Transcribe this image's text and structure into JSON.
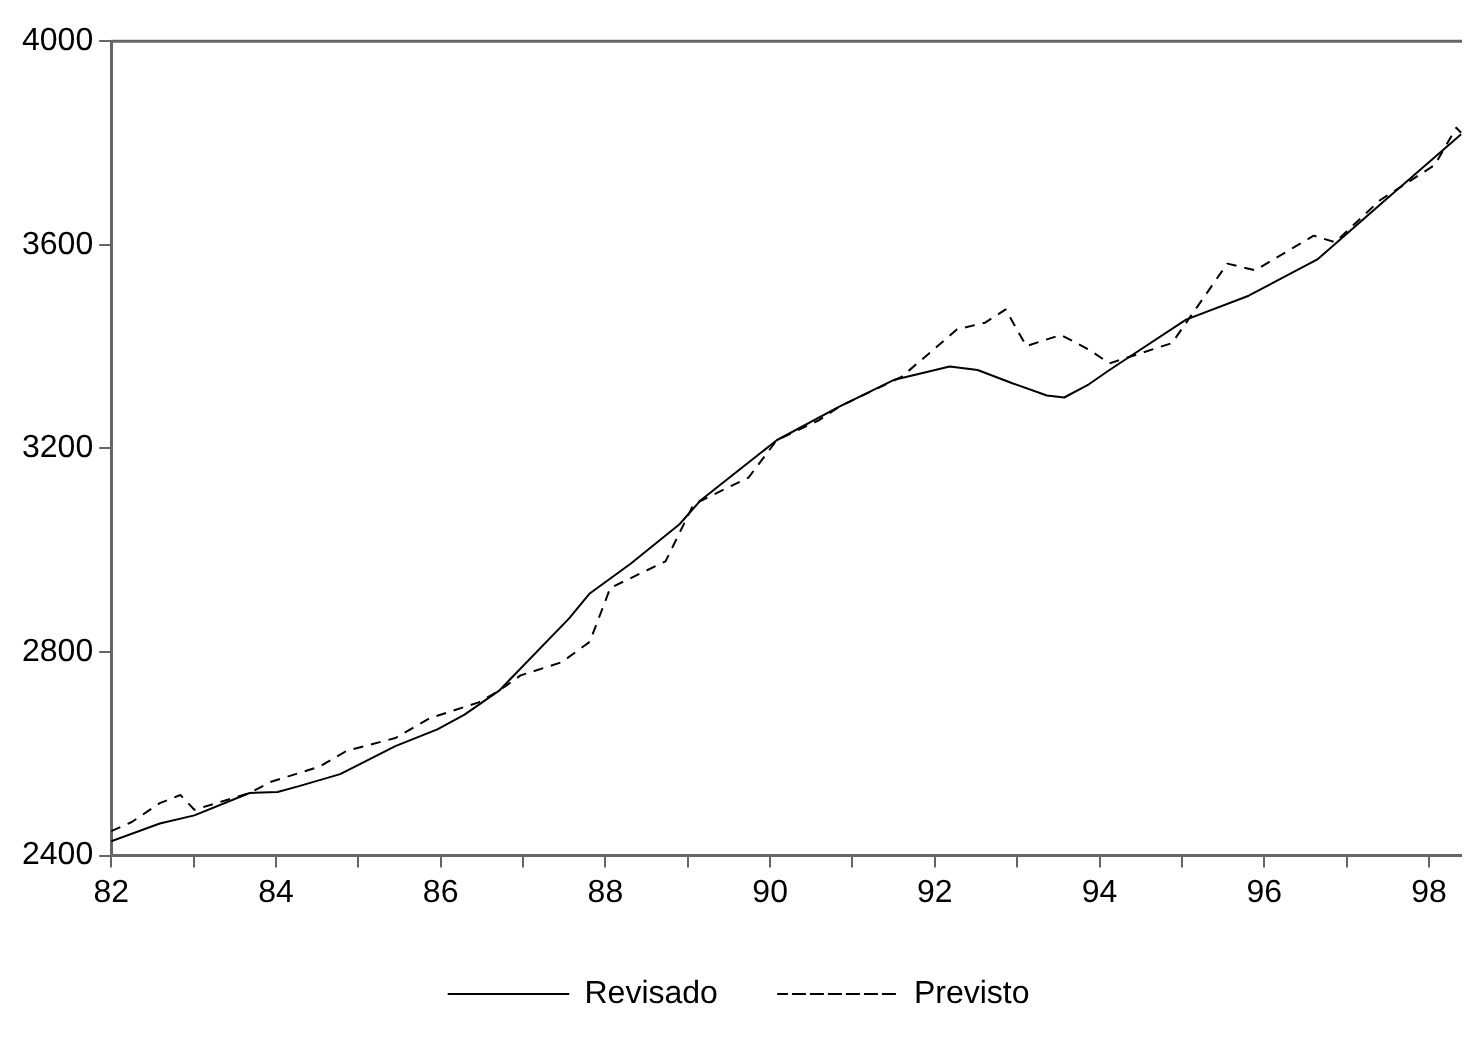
{
  "chart_data": {
    "type": "line",
    "xlim": [
      82,
      98.4
    ],
    "xticks": [
      82,
      {
        "value": 83,
        "label": null
      },
      84,
      {
        "value": 85,
        "label": null
      },
      86,
      {
        "value": 87,
        "label": null
      },
      88,
      {
        "value": 89,
        "label": null
      },
      90,
      {
        "value": 91,
        "label": null
      },
      92,
      {
        "value": 93,
        "label": null
      },
      94,
      {
        "value": 95,
        "label": null
      },
      96,
      {
        "value": 97,
        "label": null
      },
      98
    ],
    "ylim": [
      2400,
      4000
    ],
    "yticks": [
      2400,
      2800,
      3200,
      3600,
      4000
    ],
    "grid": false,
    "legend": "bottom",
    "marker": "none",
    "series": [
      {
        "name": "Revisado",
        "color": "#000000",
        "line_style": "solid",
        "x": [
          82.0,
          82.59,
          83.01,
          83.68,
          84.02,
          84.27,
          84.78,
          85.45,
          85.96,
          86.29,
          86.71,
          87.56,
          87.81,
          88.31,
          88.9,
          89.15,
          90.08,
          90.84,
          91.51,
          92.18,
          92.52,
          92.94,
          93.36,
          93.57,
          93.87,
          94.12,
          95.05,
          95.81,
          96.65,
          97.4,
          98.39
        ],
        "values": [
          2428,
          2463,
          2479,
          2523,
          2525,
          2536,
          2560,
          2615,
          2648,
          2677,
          2724,
          2866,
          2915,
          2974,
          3051,
          3097,
          3216,
          3282,
          3335,
          3361,
          3354,
          3328,
          3304,
          3300,
          3326,
          3354,
          3453,
          3500,
          3572,
          3678,
          3817
        ]
      },
      {
        "name": "Previsto",
        "color": "#000000",
        "line_style": "dashed",
        "x": [
          82.0,
          82.25,
          82.59,
          82.84,
          83.01,
          83.68,
          83.94,
          84.53,
          84.86,
          85.45,
          85.87,
          86.46,
          86.71,
          86.97,
          87.47,
          87.81,
          88.06,
          88.73,
          89.07,
          89.74,
          90.08,
          90.59,
          90.84,
          91.6,
          92.27,
          92.61,
          92.86,
          93.11,
          93.53,
          93.87,
          94.12,
          94.88,
          95.55,
          95.89,
          96.6,
          96.86,
          97.4,
          98.07,
          98.33,
          98.39
        ],
        "values": [
          2448,
          2466,
          2503,
          2519,
          2490,
          2523,
          2545,
          2575,
          2606,
          2631,
          2670,
          2701,
          2724,
          2754,
          2780,
          2820,
          2926,
          2978,
          3090,
          3143,
          3216,
          3255,
          3282,
          3341,
          3434,
          3447,
          3473,
          3401,
          3423,
          3394,
          3367,
          3407,
          3563,
          3550,
          3618,
          3605,
          3687,
          3757,
          3830,
          3820
        ]
      }
    ]
  }
}
